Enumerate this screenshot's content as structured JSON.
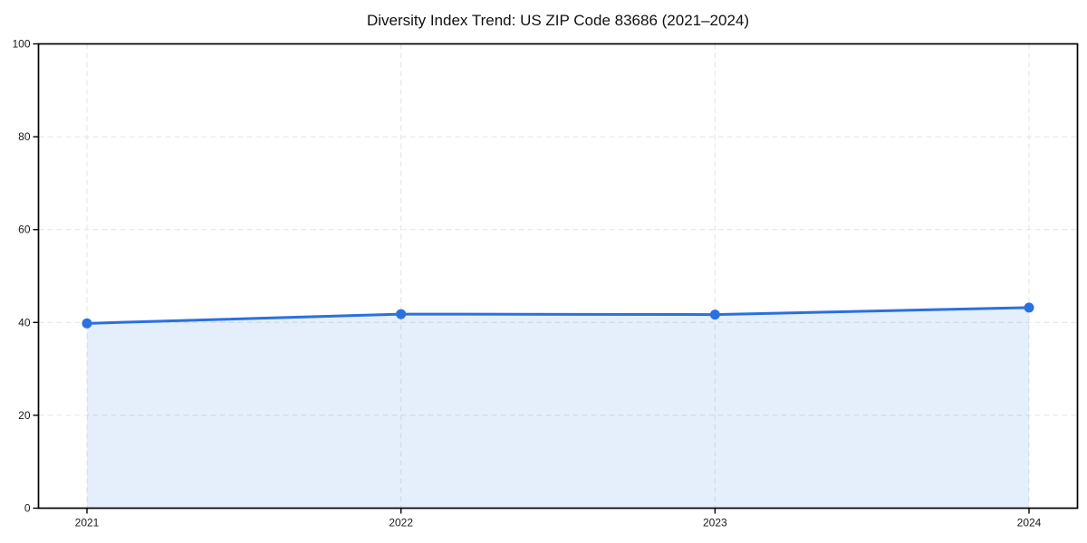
{
  "chart_data": {
    "type": "line",
    "title": "Diversity Index Trend: US ZIP Code 83686 (2021–2024)",
    "categories": [
      "2021",
      "2022",
      "2023",
      "2024"
    ],
    "series": [
      {
        "name": "Diversity Index",
        "values": [
          39.8,
          41.8,
          41.7,
          43.2
        ]
      }
    ],
    "xlabel": "",
    "ylabel": "",
    "ylim": [
      0,
      100
    ],
    "yticks": [
      0,
      20,
      40,
      60,
      80,
      100
    ],
    "grid": true,
    "grid_style": "dashed",
    "legend_position": "none",
    "fill_under_line": true,
    "marker": "circle",
    "colors": {
      "line": "#2a70e0",
      "marker": "#2a70e0",
      "fill": "rgba(42,112,224,0.12)",
      "grid": "#e3e3e3",
      "axis": "#000000",
      "tick_label": "#1a1a1a",
      "title": "#111111",
      "background": "#ffffff"
    }
  }
}
